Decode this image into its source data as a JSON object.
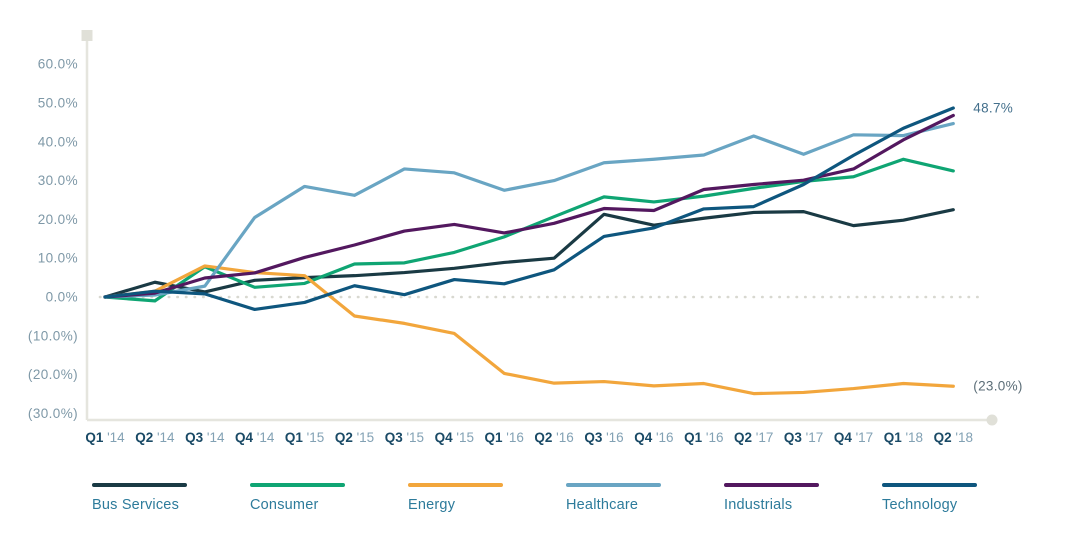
{
  "chart_data": {
    "type": "line",
    "title": "",
    "xlabel": "",
    "ylabel": "",
    "ylim": [
      -30,
      60
    ],
    "grid": false,
    "zero_line": "dotted",
    "legend_position": "bottom",
    "categories": [
      "Q1 '14",
      "Q2 '14",
      "Q3 '14",
      "Q4 '14",
      "Q1 '15",
      "Q2 '15",
      "Q3 '15",
      "Q4 '15",
      "Q1 '16",
      "Q2 '16",
      "Q3 '16",
      "Q4 '16",
      "Q1 '16",
      "Q2 '17",
      "Q3 '17",
      "Q4 '17",
      "Q1 '18",
      "Q2 '18"
    ],
    "y_ticks": [
      {
        "label": "60.0%",
        "value": 60
      },
      {
        "label": "50.0%",
        "value": 50
      },
      {
        "label": "40.0%",
        "value": 40
      },
      {
        "label": "30.0%",
        "value": 30
      },
      {
        "label": "20.0%",
        "value": 20
      },
      {
        "label": "10.0%",
        "value": 10
      },
      {
        "label": "0.0%",
        "value": 0
      },
      {
        "label": "(10.0%)",
        "value": -10
      },
      {
        "label": "(20.0%)",
        "value": -20
      },
      {
        "label": "(30.0%)",
        "value": -30
      }
    ],
    "series": [
      {
        "name": "Bus Services",
        "color": "#1a3a44",
        "values": [
          0,
          3.8,
          1.3,
          4.3,
          5.0,
          5.5,
          6.3,
          7.4,
          8.9,
          10.0,
          21.3,
          18.5,
          20.3,
          21.8,
          22.0,
          18.4,
          19.8,
          22.5
        ]
      },
      {
        "name": "Consumer",
        "color": "#0fa573",
        "values": [
          0,
          -1.0,
          7.8,
          2.5,
          3.5,
          8.5,
          8.8,
          11.5,
          15.5,
          20.7,
          25.8,
          24.5,
          26.0,
          28.0,
          29.8,
          31.0,
          35.5,
          32.5
        ]
      },
      {
        "name": "Energy",
        "color": "#f2a63c",
        "values": [
          0,
          1.5,
          8.0,
          6.3,
          5.5,
          -4.9,
          -6.8,
          -9.4,
          -19.7,
          -22.2,
          -21.8,
          -22.9,
          -22.3,
          -24.9,
          -24.6,
          -23.6,
          -22.3,
          -23.0
        ]
      },
      {
        "name": "Healthcare",
        "color": "#69a5c3",
        "values": [
          0,
          0.5,
          2.8,
          20.5,
          28.5,
          26.2,
          33.0,
          32.0,
          27.5,
          30.0,
          34.6,
          35.5,
          36.6,
          41.5,
          36.8,
          41.8,
          41.6,
          44.7
        ]
      },
      {
        "name": "Industrials",
        "color": "#53185f",
        "values": [
          0,
          1.0,
          4.9,
          6.2,
          10.2,
          13.4,
          17.0,
          18.7,
          16.5,
          19.0,
          22.8,
          22.3,
          27.7,
          29.0,
          30.1,
          33.0,
          40.5,
          46.8
        ]
      },
      {
        "name": "Technology",
        "color": "#0e567e",
        "values": [
          0,
          1.5,
          0.8,
          -3.2,
          -1.4,
          2.9,
          0.6,
          4.5,
          3.4,
          7.0,
          15.6,
          17.8,
          22.7,
          23.3,
          29.0,
          36.5,
          43.5,
          48.7
        ]
      }
    ],
    "annotations": [
      {
        "series": "Technology",
        "text": "48.7%",
        "color": "#44708c"
      },
      {
        "series": "Energy",
        "text": "(23.0%)",
        "color": "#5c6e78"
      }
    ],
    "colors": {
      "y_tick_text": "#7e98a7",
      "x_tick_quarter": "#1a4a66",
      "x_tick_year": "#82a1b4",
      "legend_text": "#2d7b9b",
      "axis_line": "#e5e5de",
      "zero_dots": "#d8d8d0",
      "scroll_handle": "#e0e0d8"
    }
  }
}
